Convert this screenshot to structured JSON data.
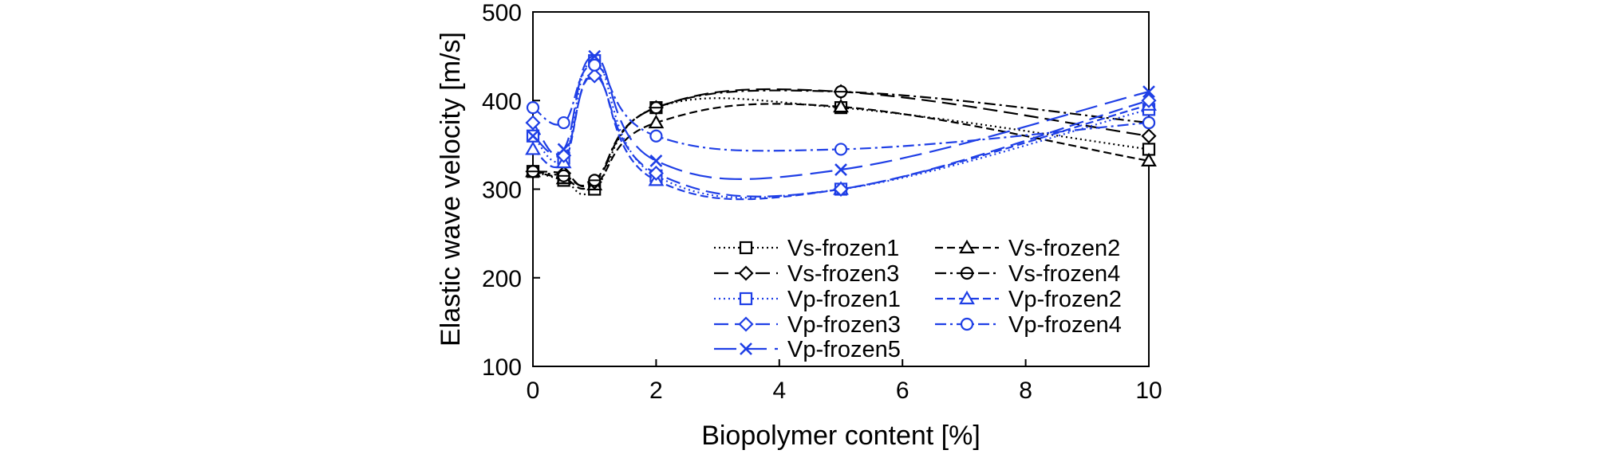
{
  "chart_data": {
    "type": "line",
    "title": "",
    "xlabel": "Biopolymer content [%]",
    "ylabel": "Elastic wave velocity [m/s]",
    "xlim": [
      0,
      10
    ],
    "ylim": [
      100,
      500
    ],
    "xticks": [
      0,
      2,
      4,
      6,
      8,
      10
    ],
    "yticks": [
      100,
      200,
      300,
      400,
      500
    ],
    "grid": false,
    "legend_position": "bottom-right",
    "series": [
      {
        "name": "Vs-frozen1",
        "color": "#000000",
        "dash": "dot",
        "marker": "square",
        "x": [
          0,
          0.5,
          1,
          2,
          5,
          10
        ],
        "y": [
          320,
          310,
          300,
          392,
          392,
          345
        ]
      },
      {
        "name": "Vs-frozen2",
        "color": "#000000",
        "dash": "dash",
        "marker": "triangle",
        "x": [
          0,
          0.5,
          1,
          2,
          5,
          10
        ],
        "y": [
          320,
          312,
          305,
          375,
          393,
          332
        ]
      },
      {
        "name": "Vs-frozen3",
        "color": "#000000",
        "dash": "longdash",
        "marker": "diamond",
        "x": [
          0,
          0.5,
          1,
          2,
          5,
          10
        ],
        "y": [
          320,
          318,
          308,
          392,
          410,
          360
        ]
      },
      {
        "name": "Vs-frozen4",
        "color": "#000000",
        "dash": "dashdot",
        "marker": "circle-line",
        "x": [
          0,
          0.5,
          1,
          2,
          5,
          10
        ],
        "y": [
          320,
          315,
          310,
          392,
          410,
          375
        ]
      },
      {
        "name": "Vp-frozen1",
        "color": "#1f3fe6",
        "dash": "dot",
        "marker": "square",
        "x": [
          0,
          0.5,
          1,
          2,
          5,
          10
        ],
        "y": [
          360,
          335,
          445,
          315,
          300,
          390
        ]
      },
      {
        "name": "Vp-frozen2",
        "color": "#1f3fe6",
        "dash": "dash",
        "marker": "triangle",
        "x": [
          0,
          0.5,
          1,
          2,
          5,
          10
        ],
        "y": [
          345,
          330,
          430,
          310,
          300,
          395
        ]
      },
      {
        "name": "Vp-frozen3",
        "color": "#1f3fe6",
        "dash": "longdash",
        "marker": "diamond",
        "x": [
          0,
          0.5,
          1,
          2,
          5,
          10
        ],
        "y": [
          375,
          338,
          428,
          318,
          300,
          400
        ]
      },
      {
        "name": "Vp-frozen4",
        "color": "#1f3fe6",
        "dash": "dashdot",
        "marker": "circle",
        "x": [
          0,
          0.5,
          1,
          2,
          5,
          10
        ],
        "y": [
          392,
          375,
          440,
          360,
          345,
          375
        ]
      },
      {
        "name": "Vp-frozen5",
        "color": "#1f3fe6",
        "dash": "longdash2",
        "marker": "x",
        "x": [
          0,
          0.5,
          1,
          2,
          5,
          10
        ],
        "y": [
          360,
          345,
          450,
          332,
          322,
          410
        ]
      }
    ]
  }
}
